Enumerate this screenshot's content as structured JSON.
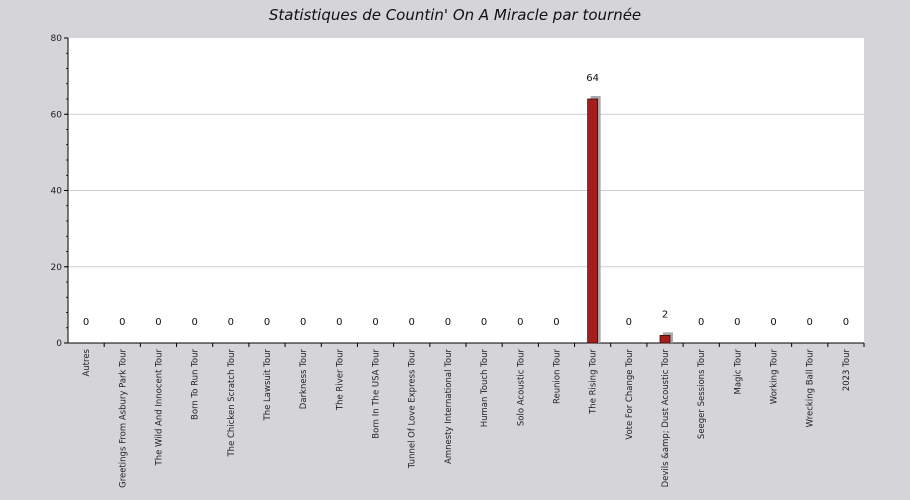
{
  "chart_data": {
    "type": "bar",
    "title": "Statistiques de Countin' On A Miracle par tournée",
    "xlabel": "",
    "ylabel": "",
    "ylim": [
      0,
      80
    ],
    "yticks": [
      0,
      20,
      40,
      60,
      80
    ],
    "grid": true,
    "legend": "none",
    "bar_color": "#a51d1d",
    "categories": [
      "Autres",
      "Greetings From Asbury Park Tour",
      "The Wild And Innocent Tour",
      "Born To Run Tour",
      "The Chicken Scratch Tour",
      "The Lawsuit Tour",
      "Darkness Tour",
      "The River Tour",
      "Born In The USA Tour",
      "Tunnel Of Love Express Tour",
      "Amnesty International Tour",
      "Human Touch Tour",
      "Solo Acoustic Tour",
      "Reunion Tour",
      "The Rising Tour",
      "Vote For Change Tour",
      "Devils &amp; Dust Acoustic Tour",
      "Seeger Sessions Tour",
      "Magic Tour",
      "Working Tour",
      "Wrecking Ball Tour",
      "2023 Tour"
    ],
    "values": [
      0,
      0,
      0,
      0,
      0,
      0,
      0,
      0,
      0,
      0,
      0,
      0,
      0,
      0,
      64,
      0,
      2,
      0,
      0,
      0,
      0,
      0
    ],
    "data_labels": [
      "0",
      "0",
      "0",
      "0",
      "0",
      "0",
      "0",
      "0",
      "0",
      "0",
      "0",
      "0",
      "0",
      "0",
      "64",
      "0",
      "2",
      "0",
      "0",
      "0",
      "0",
      "0"
    ]
  }
}
